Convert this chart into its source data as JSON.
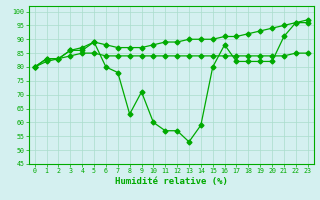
{
  "x": [
    0,
    1,
    2,
    3,
    4,
    5,
    6,
    7,
    8,
    9,
    10,
    11,
    12,
    13,
    14,
    15,
    16,
    17,
    18,
    19,
    20,
    21,
    22,
    23
  ],
  "line1": [
    80,
    82,
    83,
    86,
    86,
    89,
    80,
    78,
    63,
    71,
    60,
    57,
    57,
    53,
    59,
    80,
    88,
    82,
    82,
    82,
    82,
    91,
    96,
    96
  ],
  "line2": [
    80,
    83,
    83,
    86,
    87,
    89,
    88,
    87,
    87,
    87,
    88,
    89,
    89,
    90,
    90,
    90,
    91,
    91,
    92,
    93,
    94,
    95,
    96,
    97
  ],
  "line3": [
    80,
    83,
    83,
    84,
    85,
    85,
    84,
    84,
    84,
    84,
    84,
    84,
    84,
    84,
    84,
    84,
    84,
    84,
    84,
    84,
    84,
    84,
    85,
    85
  ],
  "xlim": [
    -0.5,
    23.5
  ],
  "ylim": [
    45,
    102
  ],
  "yticks": [
    45,
    50,
    55,
    60,
    65,
    70,
    75,
    80,
    85,
    90,
    95,
    100
  ],
  "xtick_labels": [
    "0",
    "1",
    "2",
    "3",
    "4",
    "5",
    "6",
    "7",
    "8",
    "9",
    "10",
    "11",
    "12",
    "13",
    "14",
    "15",
    "16",
    "17",
    "18",
    "19",
    "20",
    "21",
    "22",
    "23"
  ],
  "xlabel": "Humidité relative (%)",
  "line_color": "#00aa00",
  "marker": "D",
  "bg_color": "#d4f0f0",
  "grid_color": "#aaddcc"
}
